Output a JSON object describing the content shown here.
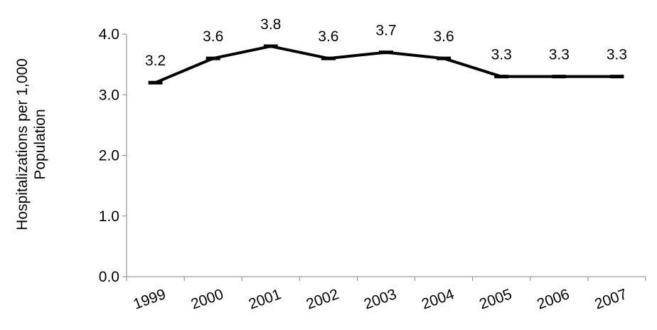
{
  "chart_data": {
    "type": "line",
    "categories": [
      "1999",
      "2000",
      "2001",
      "2002",
      "2003",
      "2004",
      "2005",
      "2006",
      "2007"
    ],
    "series": [
      {
        "values": [
          3.2,
          3.6,
          3.8,
          3.6,
          3.7,
          3.6,
          3.3,
          3.3,
          3.3
        ]
      }
    ],
    "data_labels": [
      "3.2",
      "3.6",
      "3.8",
      "3.6",
      "3.7",
      "3.6",
      "3.3",
      "3.3",
      "3.3"
    ],
    "ylabel": "Hospitalizations per 1,000 Population",
    "ylabel_lines": [
      "Hospitalizations per 1,000",
      "Population"
    ],
    "xlabel": "",
    "ylim": [
      0,
      4
    ],
    "yticks": [
      "0.0",
      "1.0",
      "2.0",
      "3.0",
      "4.0"
    ],
    "grid": false,
    "legend": "none",
    "line_color": "#000000"
  }
}
